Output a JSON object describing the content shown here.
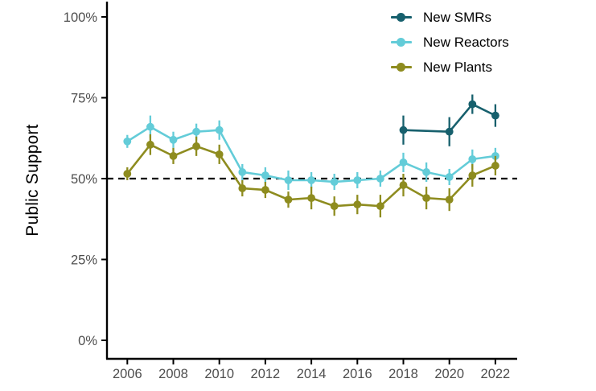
{
  "chart_data": {
    "type": "line",
    "title": "",
    "xlabel": "",
    "ylabel": "Public Support",
    "x_ticks": [
      2006,
      2008,
      2010,
      2012,
      2014,
      2016,
      2018,
      2020,
      2022
    ],
    "x_tick_labels": [
      "2006",
      "2008",
      "2010",
      "2012",
      "2014",
      "2016",
      "2018",
      "2020",
      "2022"
    ],
    "y_ticks": [
      0,
      25,
      50,
      75,
      100
    ],
    "y_tick_labels": [
      "0%",
      "25%",
      "50%",
      "75%",
      "100%"
    ],
    "ylim": [
      0,
      100
    ],
    "xlim": [
      2005,
      2023
    ],
    "grid": false,
    "reference_line": {
      "y": 50,
      "style": "dashed",
      "color": "#000000"
    },
    "legend_position": "top-right-inside",
    "point_style": "pointrange-with-error-bars",
    "series": [
      {
        "name": "New SMRs",
        "color": "#17606d",
        "points": [
          {
            "year": 2018,
            "value": 65,
            "error": 4.5
          },
          {
            "year": 2020,
            "value": 64.5,
            "error": 4.5
          },
          {
            "year": 2021,
            "value": 73,
            "error": 3
          },
          {
            "year": 2022,
            "value": 69.5,
            "error": 3.5
          }
        ]
      },
      {
        "name": "New Reactors",
        "color": "#63ccd8",
        "points": [
          {
            "year": 2006,
            "value": 61.5,
            "error": 2
          },
          {
            "year": 2007,
            "value": 66,
            "error": 3.5
          },
          {
            "year": 2008,
            "value": 62,
            "error": 2.5
          },
          {
            "year": 2009,
            "value": 64.5,
            "error": 2.5
          },
          {
            "year": 2010,
            "value": 65,
            "error": 3
          },
          {
            "year": 2011,
            "value": 52,
            "error": 2.5
          },
          {
            "year": 2012,
            "value": 51,
            "error": 2.5
          },
          {
            "year": 2013,
            "value": 49.5,
            "error": 3
          },
          {
            "year": 2014,
            "value": 49.5,
            "error": 2.5
          },
          {
            "year": 2015,
            "value": 49,
            "error": 2.5
          },
          {
            "year": 2016,
            "value": 49.5,
            "error": 2.5
          },
          {
            "year": 2017,
            "value": 50,
            "error": 2.5
          },
          {
            "year": 2018,
            "value": 55,
            "error": 3
          },
          {
            "year": 2019,
            "value": 52,
            "error": 3
          },
          {
            "year": 2020,
            "value": 50.5,
            "error": 2.5
          },
          {
            "year": 2021,
            "value": 56,
            "error": 3
          },
          {
            "year": 2022,
            "value": 57,
            "error": 2.5
          }
        ]
      },
      {
        "name": "New Plants",
        "color": "#8e8c1f",
        "points": [
          {
            "year": 2006,
            "value": 51.5,
            "error": 2
          },
          {
            "year": 2007,
            "value": 60.5,
            "error": 3.2
          },
          {
            "year": 2008,
            "value": 57,
            "error": 2.5
          },
          {
            "year": 2009,
            "value": 60,
            "error": 3
          },
          {
            "year": 2010,
            "value": 57.5,
            "error": 3
          },
          {
            "year": 2011,
            "value": 47,
            "error": 2.5
          },
          {
            "year": 2012,
            "value": 46.5,
            "error": 2.5
          },
          {
            "year": 2013,
            "value": 43.5,
            "error": 2.5
          },
          {
            "year": 2014,
            "value": 44,
            "error": 3.5
          },
          {
            "year": 2015,
            "value": 41.5,
            "error": 3
          },
          {
            "year": 2016,
            "value": 42,
            "error": 3
          },
          {
            "year": 2017,
            "value": 41.5,
            "error": 3.5
          },
          {
            "year": 2018,
            "value": 48,
            "error": 3.5
          },
          {
            "year": 2019,
            "value": 44,
            "error": 3.5
          },
          {
            "year": 2020,
            "value": 43.5,
            "error": 3.5
          },
          {
            "year": 2021,
            "value": 51,
            "error": 3.5
          },
          {
            "year": 2022,
            "value": 54,
            "error": 3
          }
        ]
      }
    ]
  },
  "colors": {
    "axis": "#000000",
    "tick_label": "#4d4d4d",
    "background": "#ffffff",
    "legend_text": "#000000"
  }
}
